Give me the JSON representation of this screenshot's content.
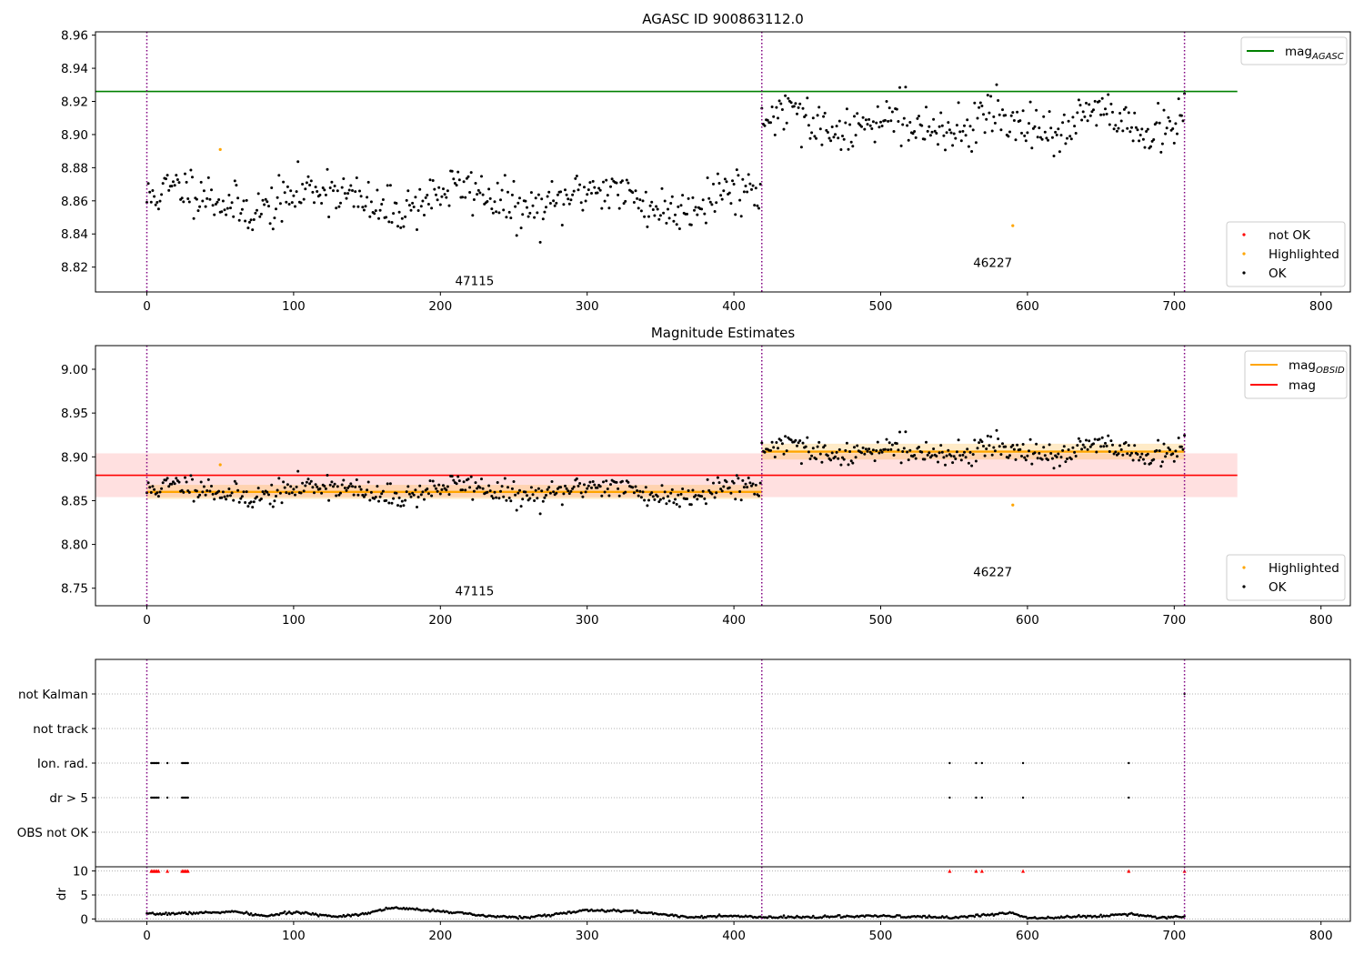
{
  "colors": {
    "ok": "#000000",
    "highlighted": "#ffa500",
    "not_ok": "#ff0000",
    "agasc_line": "#008000",
    "obsid_line": "#ffa500",
    "mag_line": "#ff0000",
    "obs_boundary": "#800080",
    "grid": "#b0b0b0"
  },
  "chart_data": [
    {
      "id": "p1",
      "type": "scatter",
      "title": "AGASC ID 900863112.0",
      "xlim": [
        -35,
        820
      ],
      "ylim": [
        8.805,
        8.962
      ],
      "x_ticks": [
        0,
        100,
        200,
        300,
        400,
        500,
        600,
        700,
        800
      ],
      "y_ticks": [
        8.82,
        8.84,
        8.86,
        8.88,
        8.9,
        8.92,
        8.94,
        8.96
      ],
      "y_tick_labels": [
        "8.82",
        "8.84",
        "8.86",
        "8.88",
        "8.90",
        "8.92",
        "8.94",
        "8.96"
      ],
      "obs_boundaries": [
        0,
        419,
        707
      ],
      "segments": [
        {
          "start": 0,
          "end": 418,
          "mean": 8.861,
          "noise": 0.007,
          "wave_amp": 0.007,
          "wave_period": 95,
          "seed": 11
        },
        {
          "start": 419,
          "end": 707,
          "mean": 8.906,
          "noise": 0.007,
          "wave_amp": 0.007,
          "wave_period": 70,
          "seed": 29
        }
      ],
      "obsid_labels": [
        {
          "text": "47115",
          "x": 210,
          "y": 8.809
        },
        {
          "text": "46227",
          "x": 563,
          "y": 8.82
        }
      ],
      "highlighted_points": [
        {
          "x": 50,
          "y": 8.891
        },
        {
          "x": 590,
          "y": 8.845
        }
      ],
      "hlines": [
        {
          "name": "mag_agasc",
          "y": 8.926,
          "x_range": [
            -35,
            743
          ],
          "color_key": "agasc_line"
        }
      ],
      "legend_upper": [
        {
          "type": "line",
          "color_key": "agasc_line",
          "text": "mag",
          "sub": "AGASC"
        }
      ],
      "legend_lower": [
        {
          "type": "dot",
          "color_key": "not_ok",
          "text": "not OK"
        },
        {
          "type": "dot",
          "color_key": "highlighted",
          "text": "Highlighted"
        },
        {
          "type": "dot",
          "color_key": "ok",
          "text": "OK"
        }
      ]
    },
    {
      "id": "p2",
      "type": "scatter",
      "title": "Magnitude Estimates",
      "xlim": [
        -35,
        820
      ],
      "ylim": [
        8.73,
        9.027
      ],
      "x_ticks": [
        0,
        100,
        200,
        300,
        400,
        500,
        600,
        700,
        800
      ],
      "y_ticks": [
        8.75,
        8.8,
        8.85,
        8.9,
        8.95,
        9.0
      ],
      "y_tick_labels": [
        "8.75",
        "8.80",
        "8.85",
        "8.90",
        "8.95",
        "9.00"
      ],
      "obs_boundaries": [
        0,
        419,
        707
      ],
      "segments": [
        {
          "start": 0,
          "end": 418,
          "mean": 8.861,
          "noise": 0.007,
          "wave_amp": 0.007,
          "wave_period": 95,
          "seed": 11
        },
        {
          "start": 419,
          "end": 707,
          "mean": 8.906,
          "noise": 0.007,
          "wave_amp": 0.007,
          "wave_period": 70,
          "seed": 29
        }
      ],
      "obsid_labels": [
        {
          "text": "47115",
          "x": 210,
          "y": 8.742
        },
        {
          "text": "46227",
          "x": 563,
          "y": 8.764
        }
      ],
      "highlighted_points": [
        {
          "x": 50,
          "y": 8.891
        },
        {
          "x": 590,
          "y": 8.845
        }
      ],
      "mag_band": {
        "y": 8.879,
        "low": 8.854,
        "high": 8.904,
        "x_range": [
          -35,
          743
        ]
      },
      "obsid_estimates": [
        {
          "x_range": [
            0,
            419
          ],
          "y": 8.86,
          "low": 8.852,
          "high": 8.868
        },
        {
          "x_range": [
            419,
            707
          ],
          "y": 8.906,
          "low": 8.897,
          "high": 8.915
        }
      ],
      "legend_upper": [
        {
          "type": "line",
          "color_key": "obsid_line",
          "text": "mag",
          "sub": "OBSID"
        },
        {
          "type": "line",
          "color_key": "mag_line",
          "text": "mag",
          "sub": ""
        }
      ],
      "legend_lower": [
        {
          "type": "dot",
          "color_key": "highlighted",
          "text": "Highlighted"
        },
        {
          "type": "dot",
          "color_key": "ok",
          "text": "OK"
        }
      ]
    },
    {
      "id": "p3",
      "type": "scatter",
      "title": "",
      "xlim": [
        -35,
        820
      ],
      "x_ticks": [
        0,
        100,
        200,
        300,
        400,
        500,
        600,
        700,
        800
      ],
      "obs_boundaries": [
        0,
        419,
        707
      ],
      "flag_rows": [
        "not Kalman",
        "not track",
        "Ion. rad.",
        "dr > 5",
        "OBS not OK"
      ],
      "flags": {
        "not Kalman": [
          707
        ],
        "not track": [],
        "Ion. rad.": [
          3,
          4,
          5,
          6,
          7,
          8,
          14,
          24,
          25,
          26,
          27,
          28,
          547,
          565,
          569,
          597,
          669
        ],
        "dr > 5": [
          3,
          4,
          5,
          6,
          7,
          8,
          14,
          24,
          25,
          26,
          27,
          28,
          547,
          565,
          569,
          597,
          669
        ],
        "OBS not OK": []
      },
      "dr_ylabel": "dr",
      "dr_ylim": [
        -0.5,
        10.5
      ],
      "dr_ticks": [
        0,
        5,
        10
      ],
      "dr_tick_labels": [
        "0",
        "5",
        "10"
      ],
      "dr_high_points": [
        3,
        4,
        5,
        6,
        7,
        8,
        14,
        24,
        25,
        26,
        27,
        28,
        547,
        565,
        569,
        597,
        669,
        707
      ],
      "dr_profile": [
        [
          0,
          1.0
        ],
        [
          40,
          1.3
        ],
        [
          60,
          1.5
        ],
        [
          80,
          0.6
        ],
        [
          100,
          1.4
        ],
        [
          130,
          0.5
        ],
        [
          150,
          1.2
        ],
        [
          165,
          2.3
        ],
        [
          200,
          1.7
        ],
        [
          230,
          0.6
        ],
        [
          260,
          0.3
        ],
        [
          300,
          1.8
        ],
        [
          330,
          1.6
        ],
        [
          370,
          0.4
        ],
        [
          400,
          0.6
        ],
        [
          419,
          0.3
        ],
        [
          450,
          0.4
        ],
        [
          500,
          0.6
        ],
        [
          550,
          0.3
        ],
        [
          590,
          1.3
        ],
        [
          600,
          0.2
        ],
        [
          650,
          0.6
        ],
        [
          670,
          1.1
        ],
        [
          690,
          0.3
        ],
        [
          707,
          0.5
        ]
      ]
    }
  ]
}
